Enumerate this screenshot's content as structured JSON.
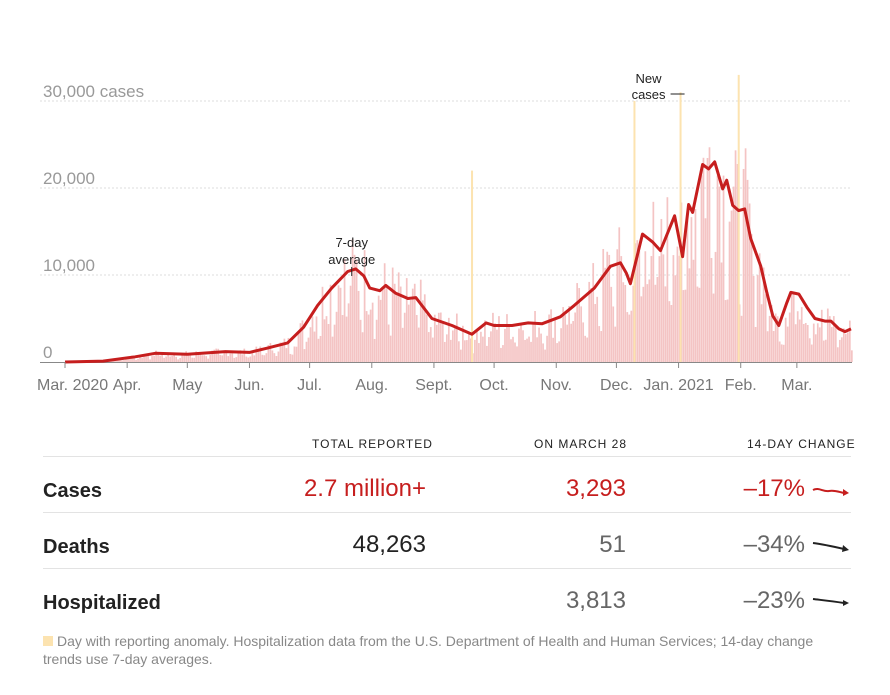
{
  "chart_data": {
    "type": "bar",
    "x_range": [
      "2020-03-01",
      "2021-03-28"
    ],
    "ylim": [
      0,
      30000
    ],
    "y_ticks": [
      {
        "value": 0,
        "label": "0"
      },
      {
        "value": 10000,
        "label": "10,000"
      },
      {
        "value": 20000,
        "label": "20,000"
      },
      {
        "value": 30000,
        "label": "30,000 cases"
      }
    ],
    "x_ticks": [
      {
        "date": "2020-03-01",
        "label": "Mar. 2020"
      },
      {
        "date": "2020-04-01",
        "label": "Apr."
      },
      {
        "date": "2020-05-01",
        "label": "May"
      },
      {
        "date": "2020-06-01",
        "label": "Jun."
      },
      {
        "date": "2020-07-01",
        "label": "Jul."
      },
      {
        "date": "2020-08-01",
        "label": "Aug."
      },
      {
        "date": "2020-09-01",
        "label": "Sept."
      },
      {
        "date": "2020-10-01",
        "label": "Oct."
      },
      {
        "date": "2020-11-01",
        "label": "Nov."
      },
      {
        "date": "2020-12-01",
        "label": "Dec."
      },
      {
        "date": "2021-01-01",
        "label": "Jan. 2021"
      },
      {
        "date": "2021-02-01",
        "label": "Feb."
      },
      {
        "date": "2021-03-01",
        "label": "Mar."
      }
    ],
    "series": [
      {
        "name": "New cases",
        "kind": "bar",
        "color": "#f4c4c4"
      },
      {
        "name": "7-day average",
        "kind": "line",
        "color": "#c61e1e",
        "points": [
          [
            "2020-03-01",
            0
          ],
          [
            "2020-03-20",
            100
          ],
          [
            "2020-04-05",
            600
          ],
          [
            "2020-04-15",
            1000
          ],
          [
            "2020-05-01",
            900
          ],
          [
            "2020-05-20",
            1200
          ],
          [
            "2020-06-01",
            1100
          ],
          [
            "2020-06-10",
            1600
          ],
          [
            "2020-06-20",
            2200
          ],
          [
            "2020-06-28",
            4000
          ],
          [
            "2020-07-05",
            6500
          ],
          [
            "2020-07-12",
            8500
          ],
          [
            "2020-07-20",
            10400
          ],
          [
            "2020-07-24",
            10700
          ],
          [
            "2020-07-28",
            9900
          ],
          [
            "2020-07-31",
            8500
          ],
          [
            "2020-08-05",
            8200
          ],
          [
            "2020-08-08",
            8800
          ],
          [
            "2020-08-13",
            7900
          ],
          [
            "2020-08-19",
            7300
          ],
          [
            "2020-08-23",
            7400
          ],
          [
            "2020-08-31",
            5000
          ],
          [
            "2020-09-10",
            4200
          ],
          [
            "2020-09-20",
            3200
          ],
          [
            "2020-09-27",
            4500
          ],
          [
            "2020-10-01",
            4200
          ],
          [
            "2020-10-10",
            4200
          ],
          [
            "2020-10-18",
            4500
          ],
          [
            "2020-10-25",
            4400
          ],
          [
            "2020-11-03",
            5200
          ],
          [
            "2020-11-10",
            6500
          ],
          [
            "2020-11-20",
            8500
          ],
          [
            "2020-11-28",
            11000
          ],
          [
            "2020-12-03",
            11400
          ],
          [
            "2020-12-06",
            10200
          ],
          [
            "2020-12-08",
            9000
          ],
          [
            "2020-12-14",
            14700
          ],
          [
            "2020-12-19",
            13800
          ],
          [
            "2020-12-23",
            12800
          ],
          [
            "2020-12-30",
            16800
          ],
          [
            "2021-01-03",
            12100
          ],
          [
            "2021-01-06",
            18100
          ],
          [
            "2021-01-08",
            17200
          ],
          [
            "2021-01-13",
            22700
          ],
          [
            "2021-01-16",
            22200
          ],
          [
            "2021-01-19",
            23000
          ],
          [
            "2021-01-23",
            19900
          ],
          [
            "2021-01-25",
            20900
          ],
          [
            "2021-01-28",
            18000
          ],
          [
            "2021-01-31",
            17400
          ],
          [
            "2021-02-03",
            17600
          ],
          [
            "2021-02-06",
            14200
          ],
          [
            "2021-02-11",
            11000
          ],
          [
            "2021-02-14",
            8000
          ],
          [
            "2021-02-17",
            5300
          ],
          [
            "2021-02-20",
            4200
          ],
          [
            "2021-02-24",
            6800
          ],
          [
            "2021-02-26",
            8000
          ],
          [
            "2021-03-02",
            7800
          ],
          [
            "2021-03-06",
            6300
          ],
          [
            "2021-03-10",
            5000
          ],
          [
            "2021-03-15",
            4700
          ],
          [
            "2021-03-18",
            4700
          ],
          [
            "2021-03-22",
            3800
          ],
          [
            "2021-03-25",
            3500
          ],
          [
            "2021-03-28",
            3800
          ]
        ]
      }
    ],
    "anomaly_days": [
      {
        "date": "2020-09-20",
        "value": 22000
      },
      {
        "date": "2020-12-10",
        "value": 30000
      },
      {
        "date": "2021-01-02",
        "value": 31000
      },
      {
        "date": "2021-01-31",
        "value": 33000
      }
    ],
    "annotations": [
      {
        "text": [
          "7-day",
          "average"
        ],
        "date": "2020-07-22"
      },
      {
        "text": [
          "New",
          "cases"
        ],
        "date": "2021-01-02"
      }
    ]
  },
  "table": {
    "headers": [
      "TOTAL REPORTED",
      "ON MARCH 28",
      "14-DAY CHANGE"
    ],
    "rows": [
      {
        "label": "Cases",
        "total": "2.7 million+",
        "on_day": "3,293",
        "change": "–17%"
      },
      {
        "label": "Deaths",
        "total": "48,263",
        "on_day": "51",
        "change": "–34%"
      },
      {
        "label": "Hospitalized",
        "total": "",
        "on_day": "3,813",
        "change": "–23%"
      }
    ]
  },
  "footnote": "Day with reporting anomaly. Hospitalization data from the U.S. Department of Health and Human Services; 14-day change trends use 7-day averages.",
  "colors": {
    "line": "#c61e1e",
    "bar": "#f4c4c4",
    "anomaly": "#fce3b0"
  }
}
